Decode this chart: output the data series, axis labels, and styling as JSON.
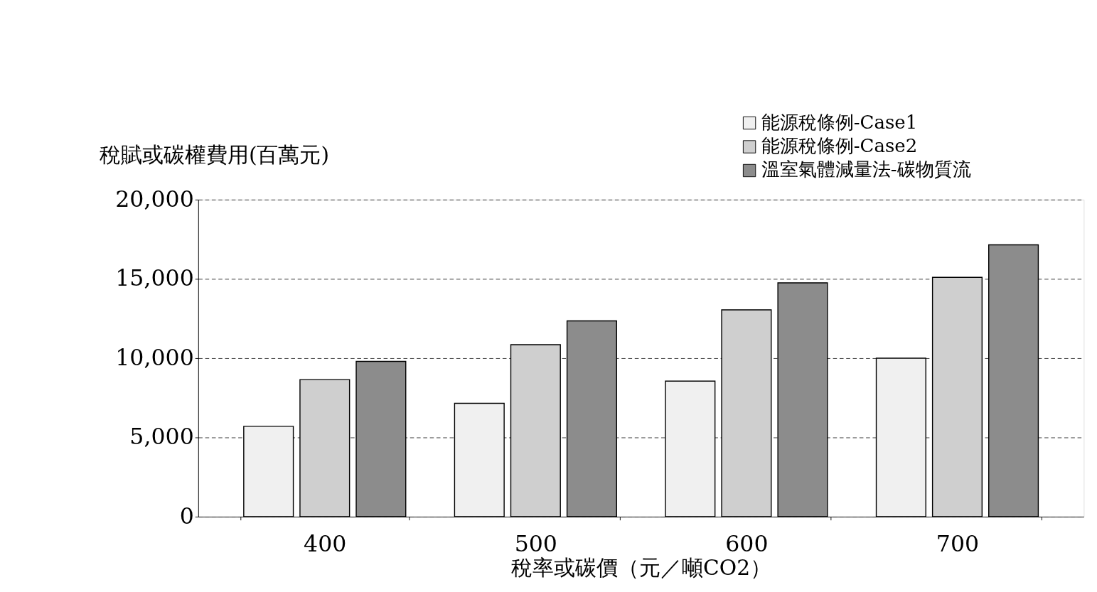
{
  "chart_data": {
    "type": "bar",
    "xlabel": "稅率或碳價（元／噸CO2）",
    "ylabel": "稅賦或碳權費用(百萬元)",
    "categories": [
      "400",
      "500",
      "600",
      "700"
    ],
    "series": [
      {
        "name": "能源稅條例-Case1",
        "color": "#f0f0f0",
        "values": [
          5700,
          7150,
          8550,
          10000
        ]
      },
      {
        "name": "能源稅條例-Case2",
        "color": "#cfcfcf",
        "values": [
          8650,
          10850,
          13050,
          15100
        ]
      },
      {
        "name": "溫室氣體減量法-碳物質流",
        "color": "#8c8c8c",
        "values": [
          9800,
          12350,
          14750,
          17150
        ]
      }
    ],
    "ylim": [
      0,
      20000
    ],
    "yticks": [
      0,
      {
        "value": 5000,
        "label": "5,000"
      },
      {
        "value": 10000,
        "label": "10,000"
      },
      {
        "value": 15000,
        "label": "15,000"
      },
      {
        "value": 20000,
        "label": "20,000"
      }
    ],
    "grid": "y",
    "legend": "top right"
  }
}
